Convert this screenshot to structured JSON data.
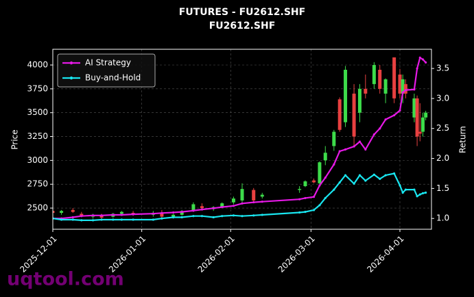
{
  "chart_data": {
    "type": "candlestick",
    "title": "FUTURES - FU2612.SHF",
    "subtitle": "FU2612.SHF",
    "y_label": "Price",
    "y2_label": "Return",
    "watermark": "uqtool.com",
    "x": [
      "2025-12-01",
      "2025-12-04",
      "2025-12-08",
      "2025-12-11",
      "2025-12-15",
      "2025-12-18",
      "2025-12-22",
      "2025-12-25",
      "2025-12-29",
      "2026-01-05",
      "2026-01-08",
      "2026-01-12",
      "2026-01-15",
      "2026-01-19",
      "2026-01-22",
      "2026-01-26",
      "2026-01-29",
      "2026-02-02",
      "2026-02-05",
      "2026-02-09",
      "2026-02-12",
      "2026-02-25",
      "2026-02-27",
      "2026-03-02",
      "2026-03-04",
      "2026-03-06",
      "2026-03-09",
      "2026-03-11",
      "2026-03-13",
      "2026-03-16",
      "2026-03-18",
      "2026-03-20",
      "2026-03-23",
      "2026-03-25",
      "2026-03-27",
      "2026-03-30",
      "2026-04-01",
      "2026-04-02",
      "2026-04-03",
      "2026-04-06",
      "2026-04-07",
      "2026-04-08",
      "2026-04-09",
      "2026-04-10"
    ],
    "open": [
      2470,
      2450,
      2480,
      2440,
      2410,
      2420,
      2410,
      2440,
      2450,
      2430,
      2450,
      2410,
      2430,
      2470,
      2520,
      2490,
      2510,
      2560,
      2580,
      2690,
      2620,
      2690,
      2730,
      2790,
      2760,
      3000,
      3150,
      3640,
      3400,
      3700,
      3500,
      3750,
      3800,
      3950,
      3700,
      4080,
      3900,
      3700,
      3800,
      3450,
      3650,
      3300,
      3300,
      3450
    ],
    "high": [
      2490,
      2480,
      2500,
      2460,
      2440,
      2440,
      2450,
      2470,
      2470,
      2470,
      2480,
      2440,
      2480,
      2560,
      2550,
      2520,
      2560,
      2620,
      2760,
      2710,
      2660,
      2730,
      2790,
      2810,
      2990,
      3150,
      3320,
      3660,
      3990,
      3800,
      3800,
      3900,
      4030,
      4000,
      3860,
      4080,
      3960,
      3900,
      3850,
      3700,
      3680,
      3600,
      3500,
      3520
    ],
    "low": [
      2440,
      2430,
      2450,
      2410,
      2390,
      2390,
      2400,
      2430,
      2420,
      2410,
      2400,
      2390,
      2420,
      2460,
      2480,
      2470,
      2500,
      2540,
      2560,
      2560,
      2600,
      2660,
      2720,
      2760,
      2750,
      2950,
      3100,
      3300,
      3350,
      3150,
      3400,
      3650,
      3750,
      3700,
      3600,
      3600,
      3650,
      3600,
      3650,
      3400,
      3150,
      3200,
      3250,
      3420
    ],
    "close": [
      2450,
      2470,
      2460,
      2420,
      2430,
      2400,
      2440,
      2460,
      2430,
      2450,
      2410,
      2430,
      2470,
      2540,
      2500,
      2510,
      2550,
      2600,
      2700,
      2580,
      2640,
      2700,
      2780,
      2770,
      2980,
      3080,
      3300,
      3320,
      3950,
      3250,
      3750,
      3700,
      4000,
      3750,
      3850,
      3650,
      3700,
      3850,
      3700,
      3650,
      3250,
      3280,
      3450,
      3500
    ],
    "up_color": "#3ddc4a",
    "down_color": "#e84040",
    "series": [
      {
        "name": "AI Strategy",
        "color": "#e619e6",
        "axis": "y2",
        "values": [
          1.0,
          1.0,
          1.02,
          1.04,
          1.05,
          1.05,
          1.06,
          1.06,
          1.07,
          1.08,
          1.09,
          1.1,
          1.11,
          1.13,
          1.15,
          1.17,
          1.19,
          1.21,
          1.25,
          1.27,
          1.28,
          1.32,
          1.34,
          1.36,
          1.55,
          1.68,
          1.9,
          2.12,
          2.15,
          2.2,
          2.28,
          2.15,
          2.4,
          2.5,
          2.65,
          2.72,
          2.8,
          3.1,
          3.14,
          3.15,
          3.5,
          3.68,
          3.65,
          3.6
        ]
      },
      {
        "name": "Buy-and-Hold",
        "color": "#19e6f0",
        "axis": "y2",
        "values": [
          1.0,
          0.98,
          0.98,
          0.97,
          0.97,
          0.98,
          0.98,
          0.98,
          0.98,
          0.98,
          1.0,
          1.02,
          1.02,
          1.04,
          1.04,
          1.02,
          1.04,
          1.05,
          1.04,
          1.05,
          1.06,
          1.1,
          1.11,
          1.14,
          1.22,
          1.34,
          1.48,
          1.6,
          1.72,
          1.58,
          1.72,
          1.63,
          1.73,
          1.66,
          1.72,
          1.75,
          1.55,
          1.43,
          1.48,
          1.48,
          1.37,
          1.4,
          1.42,
          1.43
        ]
      }
    ],
    "xlim": [
      "2025-12-01",
      "2026-04-12"
    ],
    "xticks": [
      "2025-12-01",
      "2026-01-01",
      "2026-02-01",
      "2026-03-01",
      "2026-04-01"
    ],
    "ylim": [
      2278,
      4165
    ],
    "yticks": [
      2500,
      2750,
      3000,
      3250,
      3500,
      3750,
      4000
    ],
    "y2lim": [
      0.82,
      3.82
    ],
    "y2ticks": [
      {
        "value": 1,
        "label": "1.0"
      },
      {
        "value": 1.5,
        "label": "1.5"
      },
      {
        "value": 2,
        "label": "2.0"
      },
      {
        "value": 2.5,
        "label": "2.5"
      },
      {
        "value": 3,
        "label": "3.0"
      },
      {
        "value": 3.5,
        "label": "3.5"
      }
    ],
    "grid": true,
    "legend": "upper left"
  }
}
